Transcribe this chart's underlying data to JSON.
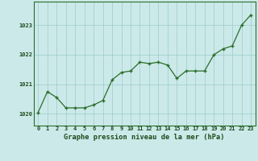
{
  "x": [
    0,
    1,
    2,
    3,
    4,
    5,
    6,
    7,
    8,
    9,
    10,
    11,
    12,
    13,
    14,
    15,
    16,
    17,
    18,
    19,
    20,
    21,
    22,
    23
  ],
  "y": [
    1020.05,
    1020.75,
    1020.55,
    1020.2,
    1020.2,
    1020.2,
    1020.3,
    1020.45,
    1021.15,
    1021.4,
    1021.45,
    1021.75,
    1021.7,
    1021.75,
    1021.65,
    1021.2,
    1021.45,
    1021.45,
    1021.45,
    1022.0,
    1022.2,
    1022.3,
    1023.0,
    1023.35
  ],
  "line_color": "#2a6e2a",
  "marker": "+",
  "marker_color": "#2a6e2a",
  "bg_color": "#cce9e9",
  "grid_color": "#99cccc",
  "title": "Graphe pression niveau de la mer (hPa)",
  "title_color": "#1a4a1a",
  "ylim": [
    1019.6,
    1023.8
  ],
  "yticks": [
    1020,
    1021,
    1022,
    1023
  ],
  "xticks": [
    0,
    1,
    2,
    3,
    4,
    5,
    6,
    7,
    8,
    9,
    10,
    11,
    12,
    13,
    14,
    15,
    16,
    17,
    18,
    19,
    20,
    21,
    22,
    23
  ],
  "tick_color": "#1a4a1a",
  "tick_fontsize": 5.0,
  "title_fontsize": 6.2,
  "spine_color": "#2a6e2a"
}
